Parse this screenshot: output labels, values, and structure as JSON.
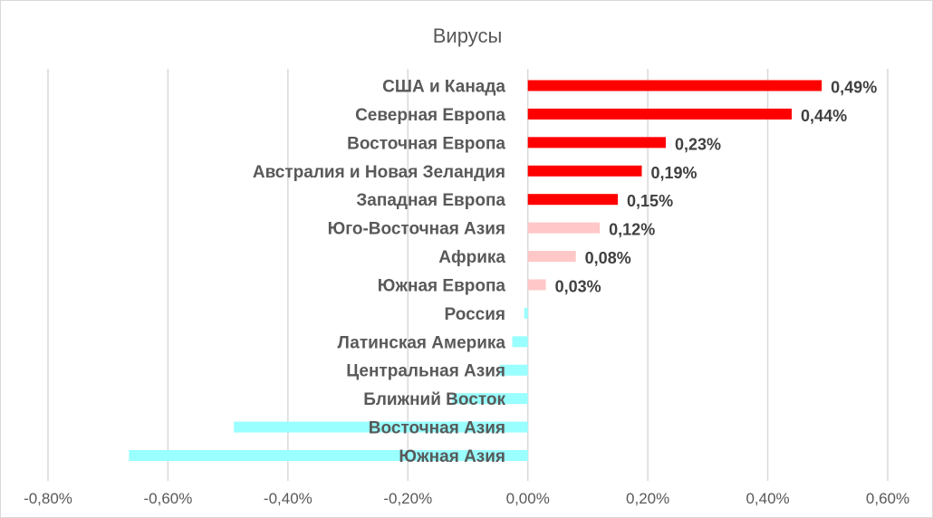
{
  "chart_data": {
    "type": "bar",
    "orientation": "horizontal",
    "title": "Вирусы",
    "xlabel": "",
    "ylabel": "",
    "xlim": [
      -0.8,
      0.6
    ],
    "x_ticks": [
      "-0,80%",
      "-0,60%",
      "-0,40%",
      "-0,20%",
      "0,00%",
      "0,20%",
      "0,40%",
      "0,60%"
    ],
    "x_tick_values": [
      -0.8,
      -0.6,
      -0.4,
      -0.2,
      0,
      0.2,
      0.4,
      0.6
    ],
    "grid": true,
    "categories": [
      "США и Канада",
      "Северная Европа",
      "Восточная Европа",
      "Австралия и Новая Зеландия",
      "Западная Европа",
      "Юго-Восточная Азия",
      "Африка",
      "Южная Европа",
      "Россия",
      "Латинская Америка",
      "Центральная Азия",
      "Ближний Восток",
      "Восточная Азия",
      "Южная Азия"
    ],
    "values": [
      0.49,
      0.44,
      0.23,
      0.19,
      0.15,
      0.12,
      0.08,
      0.03,
      -0.006,
      -0.026,
      -0.047,
      -0.126,
      -0.49,
      -0.665
    ],
    "data_labels": [
      "0,49%",
      "0,44%",
      "0,23%",
      "0,19%",
      "0,15%",
      "0,12%",
      "0,08%",
      "0,03%",
      null,
      null,
      null,
      null,
      null,
      null
    ],
    "colors": {
      "high": "#FF0000",
      "low": "#FFC7C7",
      "negative": "#99FFFF"
    },
    "color_groups": [
      "high",
      "high",
      "high",
      "high",
      "high",
      "low",
      "low",
      "low",
      "negative",
      "negative",
      "negative",
      "negative",
      "negative",
      "negative"
    ]
  }
}
